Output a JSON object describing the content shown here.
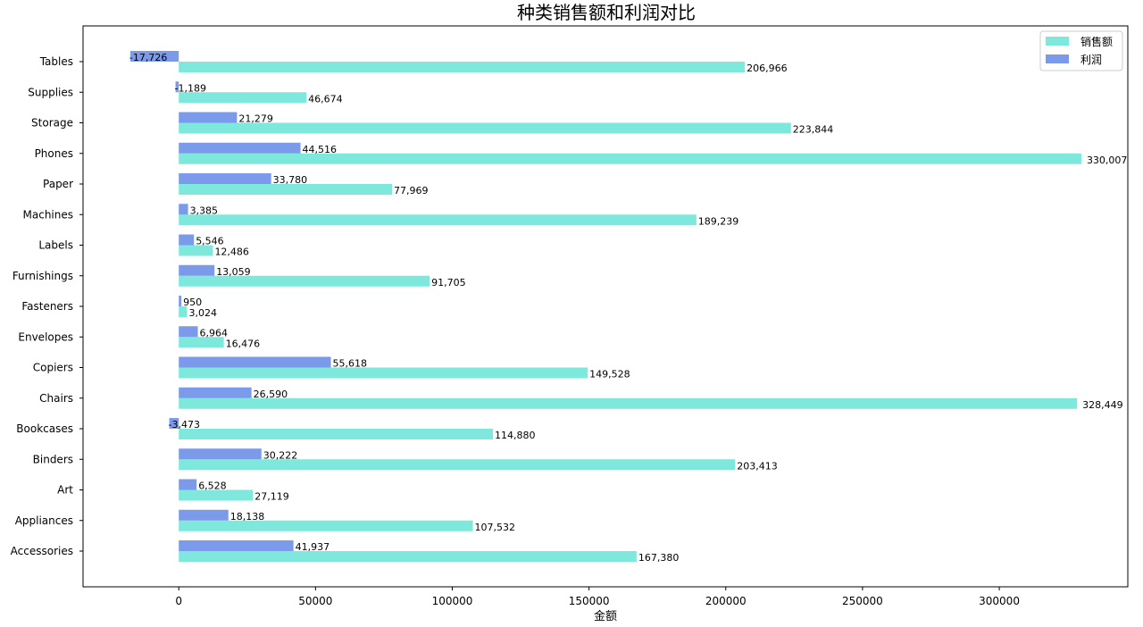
{
  "chart_data": {
    "type": "bar",
    "orientation": "horizontal",
    "title": "种类销售额和利润对比",
    "xlabel": "金额",
    "ylabel": "",
    "xlim": [
      -35000,
      347000
    ],
    "xticks": [
      0,
      50000,
      100000,
      150000,
      200000,
      250000,
      300000
    ],
    "xtick_labels": [
      "0",
      "50000",
      "100000",
      "150000",
      "200000",
      "250000",
      "300000"
    ],
    "grid": false,
    "legend_position": "top-right",
    "categories": [
      "Accessories",
      "Appliances",
      "Art",
      "Binders",
      "Bookcases",
      "Chairs",
      "Copiers",
      "Envelopes",
      "Fasteners",
      "Furnishings",
      "Labels",
      "Machines",
      "Paper",
      "Phones",
      "Storage",
      "Supplies",
      "Tables"
    ],
    "series": [
      {
        "name": "销售额",
        "color": "#7ee8dc",
        "values": [
          167380,
          107532,
          27119,
          203413,
          114880,
          328449,
          149528,
          16476,
          3024,
          91705,
          12486,
          189239,
          77969,
          330007,
          223844,
          46674,
          206966
        ],
        "labels": [
          "167,380",
          "107,532",
          "27,119",
          "203,413",
          "114,880",
          "328,449",
          "149,528",
          "16,476",
          "3,024",
          "91,705",
          "12,486",
          "189,239",
          "77,969",
          "330,007",
          "223,844",
          "46,674",
          "206,966"
        ]
      },
      {
        "name": "利润",
        "color": "#7b9aea",
        "values": [
          41937,
          18138,
          6528,
          30222,
          -3473,
          26590,
          55618,
          6964,
          950,
          13059,
          5546,
          3385,
          33780,
          44516,
          21279,
          -1189,
          -17726
        ],
        "labels": [
          "41,937",
          "18,138",
          "6,528",
          "30,222",
          "-3,473",
          "26,590",
          "55,618",
          "6,964",
          "950",
          "13,059",
          "5,546",
          "3,385",
          "33,780",
          "44,516",
          "21,279",
          "-1,189",
          "-17,726"
        ]
      }
    ]
  }
}
